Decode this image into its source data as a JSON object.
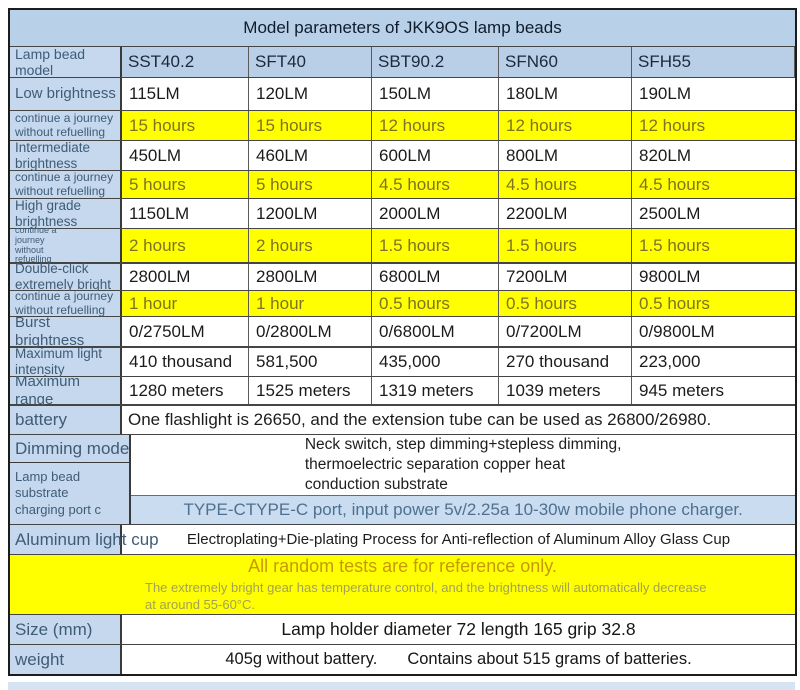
{
  "title": "Model parameters of JKK9OS lamp beads",
  "colors": {
    "title_blue": "#b9d1e8",
    "header_blue": "#b9cfe7",
    "label_blue": "#c5d8ed",
    "highlight_yellow": "#ffff00",
    "typec_band_blue": "#cadcf0",
    "bottom_strip_blue": "#d5e3f3"
  },
  "header": {
    "label": "Lamp bead model",
    "models": [
      "SST40.2",
      "SFT40",
      "SBT90.2",
      "SFN60",
      "SFH55"
    ]
  },
  "rows": [
    {
      "label": "Low brightness",
      "highlight": false,
      "values": [
        "115LM",
        "120LM",
        "150LM",
        "180LM",
        "190LM"
      ]
    },
    {
      "label": "continue a journey without refuelling",
      "highlight": true,
      "values": [
        "15 hours",
        "15 hours",
        "12 hours",
        "12 hours",
        "12 hours"
      ]
    },
    {
      "label": "Intermediate brightness",
      "highlight": false,
      "values": [
        "450LM",
        "460LM",
        "600LM",
        "800LM",
        "820LM"
      ]
    },
    {
      "label": "continue a journey without refuelling",
      "highlight": true,
      "values": [
        "5 hours",
        "5 hours",
        "4.5 hours",
        "4.5 hours",
        "4.5 hours"
      ]
    },
    {
      "label": "High grade brightness",
      "highlight": false,
      "values": [
        "1150LM",
        "1200LM",
        "2000LM",
        "2200LM",
        "2500LM"
      ]
    },
    {
      "label": "continue a\njourney\nwithout\nrefuelling",
      "highlight": true,
      "values": [
        "2 hours",
        "2 hours",
        "1.5 hours",
        "1.5 hours",
        "1.5 hours"
      ]
    },
    {
      "label": "Double-click extremely bright",
      "highlight": false,
      "values": [
        "2800LM",
        "2800LM",
        "6800LM",
        "7200LM",
        "9800LM"
      ]
    },
    {
      "label": "continue a journey without refuelling",
      "highlight": true,
      "values": [
        "1 hour",
        "1 hour",
        "0.5 hours",
        "0.5 hours",
        "0.5 hours"
      ]
    },
    {
      "label": "Burst brightness",
      "highlight": false,
      "values": [
        "0/2750LM",
        "0/2800LM",
        "0/6800LM",
        "0/7200LM",
        "0/9800LM"
      ]
    },
    {
      "label": "Maximum light intensity",
      "highlight": false,
      "values": [
        "410 thousand",
        "581,500",
        "435,000",
        "270 thousand",
        "223,000"
      ]
    },
    {
      "label": "Maximum range",
      "highlight": false,
      "values": [
        "1280 meters",
        "1525 meters",
        "1319 meters",
        "1039 meters",
        "945 meters"
      ]
    }
  ],
  "sections": {
    "battery": {
      "label": "battery",
      "text": "One flashlight is 26650, and the extension tube can be used as 26800/26980."
    },
    "dimming": {
      "label": "Dimming mode",
      "text": "Neck switch, step dimming+stepless dimming,\nthermoelectric separation copper heat\nconduction substrate"
    },
    "substrate": {
      "label": "Lamp bead\nsubstrate\ncharging port c",
      "text": "TYPE-CTYPE-C port, input power 5v/2.25a 10-30w mobile phone charger."
    },
    "aluminum": {
      "label": "Aluminum light cup",
      "text": "Electroplating+Die-plating Process for Anti-reflection of Aluminum Alloy Glass Cup"
    },
    "notice": {
      "title": "All random tests are for reference only.",
      "note": "The extremely bright gear has temperature control, and the brightness will automatically decrease\nat around 55-60°C."
    },
    "size": {
      "label": "Size (mm)",
      "text": "Lamp holder diameter 72 length 165 grip 32.8"
    },
    "weight": {
      "label": "weight",
      "text1": "405g without battery.",
      "text2": "Contains about 515 grams of batteries."
    }
  }
}
